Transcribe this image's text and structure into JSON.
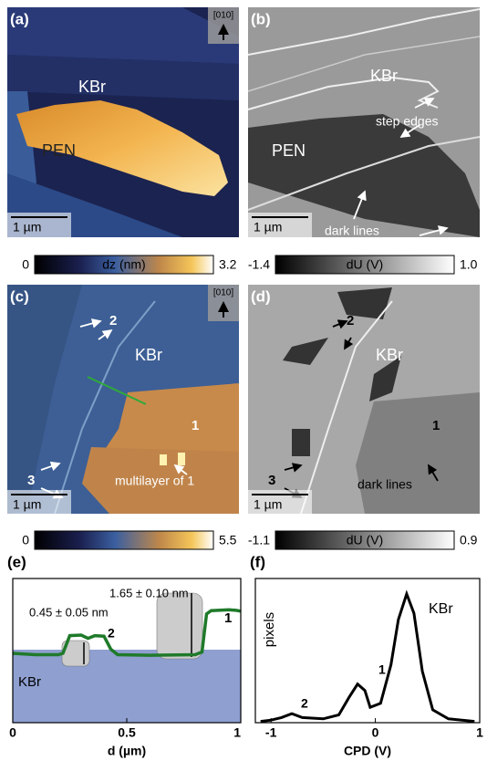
{
  "panels": [
    {
      "label": "(a)",
      "direction": "[010]",
      "scale_bar": "1 µm",
      "annotations": [
        "KBr",
        "PEN"
      ],
      "colorbar": {
        "label": "dz (nm)",
        "ticks": [
          0,
          3.2
        ]
      }
    },
    {
      "label": "(b)",
      "scale_bar": "1 µm",
      "annotations": [
        "KBr",
        "step edges",
        "PEN",
        "dark lines"
      ],
      "colorbar": {
        "label": "dU (V)",
        "ticks": [
          -1.4,
          {
            "value": 1,
            "label": "1.0"
          }
        ]
      }
    },
    {
      "label": "(c)",
      "direction": "[010]",
      "scale_bar": "1 µm",
      "annotations": [
        "2",
        "KBr",
        "1",
        "3",
        "multilayer of 1"
      ],
      "colorbar": {
        "ticks": [
          0,
          5.5
        ]
      }
    },
    {
      "label": "(d)",
      "scale_bar": "1 µm",
      "annotations": [
        "2",
        "KBr",
        "1",
        "3",
        "dark lines"
      ],
      "colorbar": {
        "label": "dU (V)",
        "ticks": [
          -1.1,
          0.9
        ]
      }
    }
  ],
  "chart_data": [
    {
      "type": "line",
      "label": "(e)",
      "xlabel": "d (µm)",
      "xlim": [
        0,
        1
      ],
      "xticks": [
        0,
        0.5,
        1
      ],
      "ylim": [
        -2.5,
        2.8
      ],
      "annotations": [
        "0.45 ± 0.05 nm",
        "2",
        "1.65 ± 0.10 nm",
        "1",
        "KBr"
      ],
      "series": [
        {
          "color": "#1f7a2a",
          "x": [
            0,
            0.1,
            0.2,
            0.22,
            0.25,
            0.3,
            0.33,
            0.36,
            0.4,
            0.43,
            0.46,
            0.6,
            0.8,
            0.83,
            0.85,
            0.87,
            0.95,
            0.98,
            1
          ],
          "values": [
            0.05,
            0,
            0,
            0.05,
            0.7,
            0.72,
            0.6,
            0.7,
            0.68,
            0.2,
            0,
            -0.02,
            0,
            0.1,
            1.5,
            1.62,
            1.65,
            1.63,
            1.6
          ]
        }
      ]
    },
    {
      "type": "line",
      "label": "(f)",
      "xlabel": "CPD (V)",
      "ylabel": "pixels",
      "xlim": [
        -1.15,
        1
      ],
      "xticks": [
        -1,
        0,
        1
      ],
      "ylim": [
        0,
        1.12
      ],
      "annotations": [
        "2",
        "1",
        "KBr"
      ],
      "series": [
        {
          "color": "#000000",
          "x": [
            -1.1,
            -1.0,
            -0.9,
            -0.8,
            -0.7,
            -0.5,
            -0.35,
            -0.25,
            -0.17,
            -0.1,
            -0.05,
            0.05,
            0.15,
            0.22,
            0.3,
            0.37,
            0.45,
            0.55,
            0.7,
            0.95
          ],
          "values": [
            0.01,
            0.02,
            0.04,
            0.07,
            0.04,
            0.03,
            0.06,
            0.2,
            0.3,
            0.25,
            0.12,
            0.15,
            0.45,
            0.8,
            1.0,
            0.85,
            0.4,
            0.1,
            0.03,
            0.01
          ]
        }
      ]
    }
  ]
}
